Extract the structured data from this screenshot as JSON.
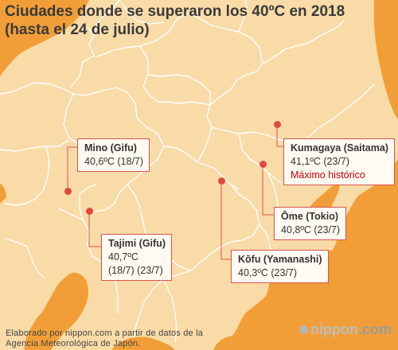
{
  "title": {
    "line1": "Ciudades donde se superaron los 40ºC en 2018",
    "line2": "(hasta el 24 de julio)"
  },
  "colors": {
    "sea": "#f29e38",
    "land": "#f9dba8",
    "border": "#ffffff",
    "marker": "#e04a3f",
    "record": "#cc0000"
  },
  "cities": [
    {
      "id": "mino",
      "name": "Mino (Gifu)",
      "lines": [
        "40,6ºC (18/7)"
      ]
    },
    {
      "id": "tajimi",
      "name": "Tajimi (Gifu)",
      "lines": [
        "40,7ºC",
        "(18/7) (23/7)"
      ]
    },
    {
      "id": "kofu",
      "name": "Kōfu (Yamanashi)",
      "lines": [
        "40,3ºC (23/7)"
      ]
    },
    {
      "id": "ome",
      "name": "Ōme (Tokio)",
      "lines": [
        "40,8ºC (23/7)"
      ]
    },
    {
      "id": "kumagaya",
      "name": "Kumagaya (Saitama)",
      "lines": [
        "41,1ºC (23/7)"
      ],
      "record": "Máximo histórico"
    }
  ],
  "footer": {
    "line1": "Elaborado por nippon.com a partir de datos de la",
    "line2": "Agencia Meteorológica de Japón."
  },
  "brand": {
    "part1": "nippon",
    "part2": ".com"
  }
}
